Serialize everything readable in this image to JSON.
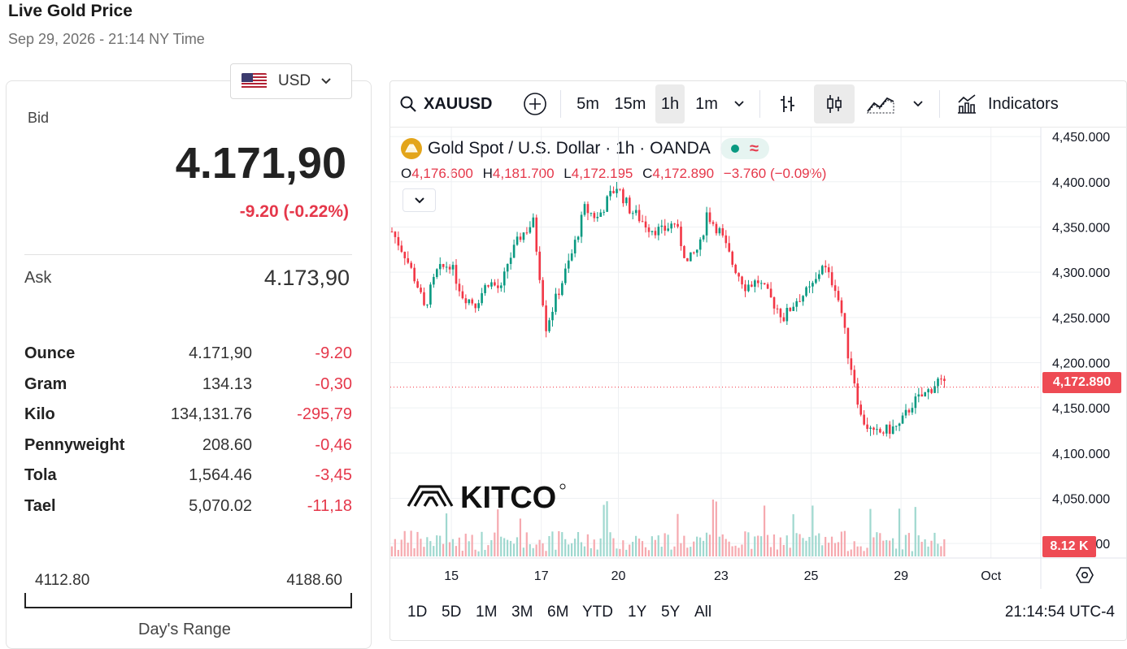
{
  "header": {
    "title": "Live Gold Price",
    "date": "Sep 29, 2026 - 21:14 NY Time"
  },
  "currency": {
    "selected": "USD",
    "flag_icon": "us-flag-icon"
  },
  "quote": {
    "bid_label": "Bid",
    "bid": "4.171,90",
    "change": "-9.20 (-0.22%)",
    "ask_label": "Ask",
    "ask": "4.173,90",
    "down_color": "#e5374a"
  },
  "units": [
    {
      "name": "Ounce",
      "price": "4.171,90",
      "change": "-9.20"
    },
    {
      "name": "Gram",
      "price": "134.13",
      "change": "-0,30"
    },
    {
      "name": "Kilo",
      "price": "134,131.76",
      "change": "-295,79"
    },
    {
      "name": "Pennyweight",
      "price": "208.60",
      "change": "-0,46"
    },
    {
      "name": "Tola",
      "price": "1,564.46",
      "change": "-3,45"
    },
    {
      "name": "Tael",
      "price": "5,070.02",
      "change": "-11,18"
    }
  ],
  "day_range": {
    "low": "4112.80",
    "high": "4188.60",
    "label": "Day's Range"
  },
  "toolbar": {
    "symbol": "XAUUSD",
    "intervals": [
      "5m",
      "15m",
      "1h",
      "1m"
    ],
    "active_interval": "1h",
    "indicators_label": "Indicators"
  },
  "legend": {
    "title": "Gold Spot / U.S. Dollar · 1h · OANDA",
    "o_key": "O",
    "o": "4,176.600",
    "h_key": "H",
    "h": "4,181.700",
    "l_key": "L",
    "l": "4,172.195",
    "c_key": "C",
    "c": "4,172.890",
    "chg": "−3.760 (−0.09%)"
  },
  "watermark": "KITCO",
  "last_price_tag": "4,172.890",
  "volume_tag": "8.12 K",
  "range_buttons": [
    "1D",
    "5D",
    "1M",
    "3M",
    "6M",
    "YTD",
    "1Y",
    "5Y",
    "All"
  ],
  "clock": "21:14:54 UTC-4",
  "chart_data": {
    "type": "candlestick",
    "title": "Gold Spot / U.S. Dollar · 1h · OANDA",
    "y_ticks": [
      "4,450.000",
      "4,400.000",
      "4,350.000",
      "4,300.000",
      "4,250.000",
      "4,200.000",
      "4,150.000",
      "4,100.000",
      "4,050.000",
      "4,000.000"
    ],
    "y_tick_values": [
      4450,
      4400,
      4350,
      4300,
      4250,
      4200,
      4150,
      4100,
      4050,
      4000
    ],
    "x_ticks": [
      "15",
      "17",
      "20",
      "23",
      "25",
      "29",
      "Oct"
    ],
    "x_tick_index": [
      9,
      23,
      35,
      51,
      65,
      79,
      93
    ],
    "ylim": [
      3975,
      4460
    ],
    "last_price": 4172.89,
    "up_color": "#089981",
    "down_color": "#f23645",
    "close_path": [
      [
        0,
        4345
      ],
      [
        2,
        4320
      ],
      [
        4,
        4285
      ],
      [
        5,
        4260
      ],
      [
        7,
        4300
      ],
      [
        9,
        4310
      ],
      [
        11,
        4275
      ],
      [
        13,
        4265
      ],
      [
        15,
        4290
      ],
      [
        17,
        4280
      ],
      [
        18,
        4310
      ],
      [
        20,
        4340
      ],
      [
        22,
        4355
      ],
      [
        24,
        4240
      ],
      [
        26,
        4280
      ],
      [
        28,
        4320
      ],
      [
        30,
        4370
      ],
      [
        32,
        4360
      ],
      [
        34,
        4385
      ],
      [
        35,
        4395
      ],
      [
        37,
        4370
      ],
      [
        40,
        4350
      ],
      [
        42,
        4345
      ],
      [
        44,
        4355
      ],
      [
        46,
        4310
      ],
      [
        48,
        4330
      ],
      [
        49,
        4365
      ],
      [
        51,
        4345
      ],
      [
        53,
        4310
      ],
      [
        55,
        4285
      ],
      [
        57,
        4290
      ],
      [
        59,
        4270
      ],
      [
        61,
        4250
      ],
      [
        63,
        4270
      ],
      [
        65,
        4280
      ],
      [
        66,
        4290
      ],
      [
        67,
        4310
      ],
      [
        68,
        4295
      ],
      [
        69,
        4285
      ],
      [
        70,
        4255
      ],
      [
        71,
        4210
      ],
      [
        72,
        4180
      ],
      [
        73,
        4140
      ],
      [
        75,
        4120
      ],
      [
        77,
        4125
      ],
      [
        79,
        4130
      ],
      [
        81,
        4155
      ],
      [
        83,
        4165
      ],
      [
        85,
        4180
      ],
      [
        86,
        4172.89
      ]
    ],
    "volume_max_label": "8.12 K"
  }
}
